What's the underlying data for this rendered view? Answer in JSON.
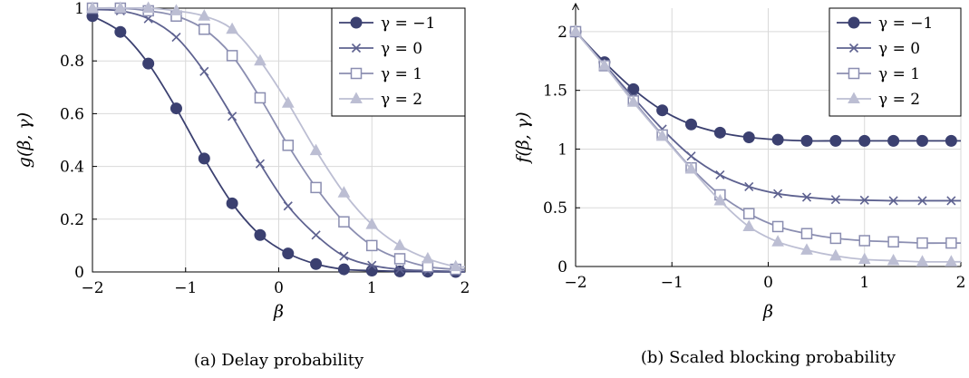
{
  "chart_data": [
    {
      "type": "line",
      "caption": "(a) Delay probability",
      "xlabel": "β",
      "ylabel": "g(β, γ)",
      "xlim": [
        -2,
        2
      ],
      "ylim": [
        0,
        1
      ],
      "xticks": [
        "−2",
        "−1",
        "0",
        "1",
        "2"
      ],
      "yticks": [
        "0",
        "0.2",
        "0.4",
        "0.6",
        "0.8",
        "1"
      ],
      "grid": true,
      "legend_position": "top-right",
      "x": [
        -2.0,
        -1.7,
        -1.4,
        -1.1,
        -0.8,
        -0.5,
        -0.2,
        0.1,
        0.4,
        0.7,
        1.0,
        1.3,
        1.6,
        1.9
      ],
      "series": [
        {
          "name": "γ = −1",
          "marker": "circle",
          "color": "#3b4070",
          "values": [
            0.97,
            0.91,
            0.79,
            0.62,
            0.43,
            0.26,
            0.14,
            0.07,
            0.03,
            0.01,
            0.005,
            0.002,
            0.001,
            0.0
          ]
        },
        {
          "name": "γ = 0",
          "marker": "x",
          "color": "#5e6290",
          "values": [
            0.995,
            0.99,
            0.96,
            0.89,
            0.76,
            0.59,
            0.41,
            0.25,
            0.14,
            0.06,
            0.025,
            0.01,
            0.005,
            0.002
          ]
        },
        {
          "name": "γ = 1",
          "marker": "square",
          "color": "#8b8eb1",
          "values": [
            1.0,
            1.0,
            0.99,
            0.97,
            0.92,
            0.82,
            0.66,
            0.48,
            0.32,
            0.19,
            0.1,
            0.05,
            0.02,
            0.01
          ]
        },
        {
          "name": "γ = 2",
          "marker": "triangle",
          "color": "#bcbed3",
          "values": [
            1.0,
            1.0,
            1.0,
            0.99,
            0.97,
            0.92,
            0.8,
            0.64,
            0.46,
            0.3,
            0.18,
            0.1,
            0.05,
            0.02
          ]
        }
      ]
    },
    {
      "type": "line",
      "caption": "(b) Scaled blocking probability",
      "xlabel": "β",
      "ylabel": "f(β, γ)",
      "xlim": [
        -2,
        2
      ],
      "ylim": [
        0,
        2.2
      ],
      "xticks": [
        "−2",
        "−1",
        "0",
        "1",
        "2"
      ],
      "yticks": [
        "0",
        "0.5",
        "1",
        "1.5",
        "2"
      ],
      "grid": true,
      "legend_position": "top-right",
      "x": [
        -2.0,
        -1.7,
        -1.4,
        -1.1,
        -0.8,
        -0.5,
        -0.2,
        0.1,
        0.4,
        0.7,
        1.0,
        1.3,
        1.6,
        1.9
      ],
      "series": [
        {
          "name": "γ = −1",
          "marker": "circle",
          "color": "#3b4070",
          "values": [
            2.0,
            1.74,
            1.51,
            1.33,
            1.21,
            1.14,
            1.1,
            1.08,
            1.07,
            1.07,
            1.07,
            1.07,
            1.07,
            1.07
          ]
        },
        {
          "name": "γ = 0",
          "marker": "x",
          "color": "#5e6290",
          "values": [
            2.0,
            1.72,
            1.44,
            1.17,
            0.94,
            0.78,
            0.68,
            0.62,
            0.59,
            0.57,
            0.565,
            0.56,
            0.56,
            0.56
          ]
        },
        {
          "name": "γ = 1",
          "marker": "square",
          "color": "#8b8eb1",
          "values": [
            2.0,
            1.71,
            1.41,
            1.12,
            0.84,
            0.61,
            0.45,
            0.34,
            0.28,
            0.24,
            0.22,
            0.21,
            0.2,
            0.2
          ]
        },
        {
          "name": "γ = 2",
          "marker": "triangle",
          "color": "#bcbed3",
          "values": [
            2.0,
            1.71,
            1.4,
            1.11,
            0.83,
            0.56,
            0.34,
            0.21,
            0.14,
            0.09,
            0.06,
            0.05,
            0.04,
            0.04
          ]
        }
      ]
    }
  ]
}
